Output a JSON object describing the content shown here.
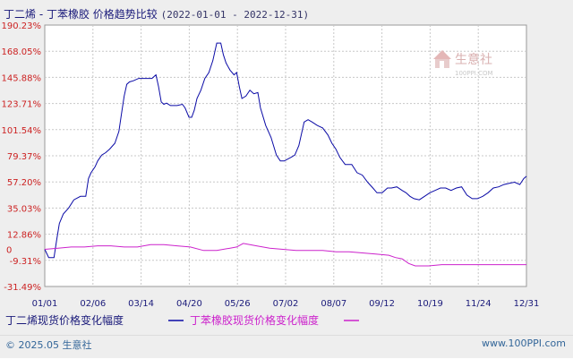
{
  "header": {
    "title": "丁二烯 - 丁苯橡胶 价格趋势比较",
    "date_range": "(2022-01-01 - 2022-12-31)"
  },
  "watermark": {
    "cn": "生意社",
    "en": "100PPI.COM"
  },
  "footer": {
    "copyright": "© 2025.05 生意社",
    "site": "www.100PPI.com"
  },
  "colors": {
    "butadiene": "#0a0aa6",
    "sbr": "#cc22cc",
    "grid": "#c8c8c8",
    "axis_text": "#cc2222"
  },
  "chart_data": {
    "type": "line",
    "x_tick_labels": [
      "01/01",
      "02/06",
      "03/14",
      "04/20",
      "05/26",
      "07/02",
      "08/07",
      "09/12",
      "10/19",
      "11/24",
      "12/31"
    ],
    "y_tick_labels": [
      "190.23%",
      "168.05%",
      "145.88%",
      "123.71%",
      "101.54%",
      "79.37%",
      "57.20%",
      "35.03%",
      "12.86%",
      "-9.31%",
      "-31.49%"
    ],
    "y_zero_label": "0",
    "ylim": [
      -31.49,
      190.23
    ],
    "xlim_days": [
      0,
      364
    ],
    "grid": true,
    "legend_position": "bottom",
    "series": [
      {
        "name": "丁二烯现货价格变化幅度",
        "points": [
          [
            0,
            0
          ],
          [
            3,
            -7
          ],
          [
            7,
            -7
          ],
          [
            9,
            8
          ],
          [
            11,
            22
          ],
          [
            14,
            30
          ],
          [
            18,
            35
          ],
          [
            22,
            42
          ],
          [
            27,
            45
          ],
          [
            31,
            45
          ],
          [
            33,
            60
          ],
          [
            35,
            65
          ],
          [
            38,
            70
          ],
          [
            40,
            75
          ],
          [
            43,
            80
          ],
          [
            46,
            82
          ],
          [
            49,
            85
          ],
          [
            53,
            90
          ],
          [
            56,
            100
          ],
          [
            58,
            115
          ],
          [
            60,
            130
          ],
          [
            62,
            140
          ],
          [
            64,
            142
          ],
          [
            67,
            143
          ],
          [
            71,
            145
          ],
          [
            76,
            145
          ],
          [
            81,
            145
          ],
          [
            84,
            148
          ],
          [
            86,
            138
          ],
          [
            88,
            125
          ],
          [
            90,
            123
          ],
          [
            92,
            124
          ],
          [
            95,
            122
          ],
          [
            100,
            122
          ],
          [
            104,
            123
          ],
          [
            106,
            120
          ],
          [
            109,
            112
          ],
          [
            111,
            112
          ],
          [
            113,
            118
          ],
          [
            115,
            128
          ],
          [
            118,
            135
          ],
          [
            121,
            145
          ],
          [
            124,
            150
          ],
          [
            127,
            160
          ],
          [
            130,
            175
          ],
          [
            133,
            175
          ],
          [
            135,
            165
          ],
          [
            137,
            158
          ],
          [
            140,
            152
          ],
          [
            143,
            148
          ],
          [
            145,
            150
          ],
          [
            147,
            138
          ],
          [
            149,
            128
          ],
          [
            152,
            130
          ],
          [
            155,
            135
          ],
          [
            158,
            132
          ],
          [
            161,
            133
          ],
          [
            163,
            120
          ],
          [
            167,
            105
          ],
          [
            171,
            95
          ],
          [
            175,
            80
          ],
          [
            178,
            75
          ],
          [
            181,
            75
          ],
          [
            186,
            78
          ],
          [
            189,
            80
          ],
          [
            192,
            88
          ],
          [
            196,
            108
          ],
          [
            199,
            110
          ],
          [
            202,
            108
          ],
          [
            206,
            105
          ],
          [
            210,
            103
          ],
          [
            214,
            97
          ],
          [
            217,
            90
          ],
          [
            220,
            85
          ],
          [
            223,
            78
          ],
          [
            227,
            72
          ],
          [
            232,
            72
          ],
          [
            236,
            65
          ],
          [
            240,
            63
          ],
          [
            244,
            57
          ],
          [
            248,
            52
          ],
          [
            251,
            48
          ],
          [
            255,
            48
          ],
          [
            259,
            52
          ],
          [
            262,
            52
          ],
          [
            266,
            53
          ],
          [
            270,
            50
          ],
          [
            273,
            48
          ],
          [
            276,
            45
          ],
          [
            279,
            43
          ],
          [
            283,
            42
          ],
          [
            287,
            45
          ],
          [
            291,
            48
          ],
          [
            295,
            50
          ],
          [
            299,
            52
          ],
          [
            303,
            52
          ],
          [
            307,
            50
          ],
          [
            311,
            52
          ],
          [
            315,
            53
          ],
          [
            319,
            46
          ],
          [
            323,
            43
          ],
          [
            327,
            43
          ],
          [
            331,
            45
          ],
          [
            335,
            48
          ],
          [
            339,
            52
          ],
          [
            343,
            53
          ],
          [
            347,
            55
          ],
          [
            351,
            56
          ],
          [
            355,
            57
          ],
          [
            359,
            55
          ],
          [
            362,
            60
          ],
          [
            364,
            62
          ]
        ]
      },
      {
        "name": "丁苯橡胶现货价格变化幅度",
        "points": [
          [
            0,
            0
          ],
          [
            10,
            1
          ],
          [
            20,
            2
          ],
          [
            30,
            2
          ],
          [
            40,
            3
          ],
          [
            50,
            3
          ],
          [
            60,
            2
          ],
          [
            70,
            2
          ],
          [
            80,
            4
          ],
          [
            90,
            4
          ],
          [
            100,
            3
          ],
          [
            110,
            2
          ],
          [
            120,
            -1
          ],
          [
            130,
            -1
          ],
          [
            140,
            1
          ],
          [
            145,
            2
          ],
          [
            150,
            5
          ],
          [
            155,
            4
          ],
          [
            160,
            3
          ],
          [
            170,
            1
          ],
          [
            180,
            0
          ],
          [
            190,
            -1
          ],
          [
            200,
            -1
          ],
          [
            210,
            -1
          ],
          [
            220,
            -2
          ],
          [
            230,
            -2
          ],
          [
            240,
            -3
          ],
          [
            250,
            -4
          ],
          [
            260,
            -5
          ],
          [
            265,
            -7
          ],
          [
            270,
            -8
          ],
          [
            275,
            -12
          ],
          [
            280,
            -14
          ],
          [
            290,
            -14
          ],
          [
            300,
            -13
          ],
          [
            310,
            -13
          ],
          [
            320,
            -13
          ],
          [
            330,
            -13
          ],
          [
            340,
            -13
          ],
          [
            350,
            -13
          ],
          [
            364,
            -13
          ]
        ]
      }
    ]
  }
}
